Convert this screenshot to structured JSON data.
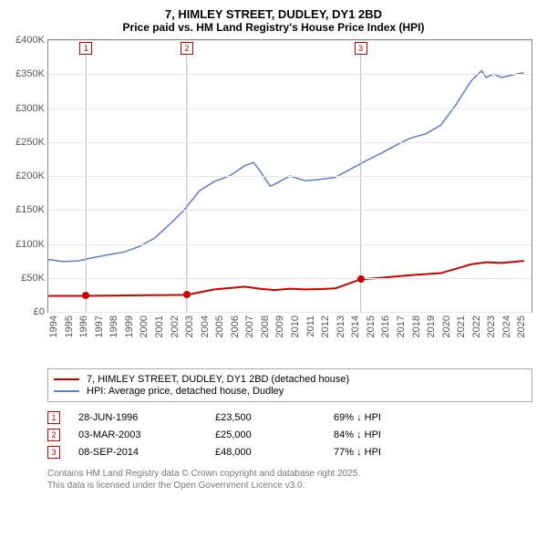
{
  "title": "7, HIMLEY STREET, DUDLEY, DY1 2BD",
  "subtitle": "Price paid vs. HM Land Registry's House Price Index (HPI)",
  "chart": {
    "type": "line",
    "background_color": "#ffffff",
    "grid_color": "#e8e8e8",
    "axis_color": "#888888",
    "x_range": [
      1994,
      2026
    ],
    "y_range": [
      0,
      400000
    ],
    "y_ticks": [
      0,
      50000,
      100000,
      150000,
      200000,
      250000,
      300000,
      350000,
      400000
    ],
    "y_tick_labels": [
      "£0",
      "£50K",
      "£100K",
      "£150K",
      "£200K",
      "£250K",
      "£300K",
      "£350K",
      "£400K"
    ],
    "x_ticks": [
      1994,
      1995,
      1996,
      1997,
      1998,
      1999,
      2000,
      2001,
      2002,
      2003,
      2004,
      2005,
      2006,
      2007,
      2008,
      2009,
      2010,
      2011,
      2012,
      2013,
      2014,
      2015,
      2016,
      2017,
      2018,
      2019,
      2020,
      2021,
      2022,
      2023,
      2024,
      2025
    ],
    "label_fontsize": 11,
    "title_fontsize": 13,
    "series": {
      "hpi": {
        "label": "HPI: Average price, detached house, Dudley",
        "color": "#5b7fc7",
        "line_width": 1.5,
        "data": [
          [
            1994,
            77000
          ],
          [
            1995,
            74000
          ],
          [
            1996,
            75000
          ],
          [
            1997,
            80000
          ],
          [
            1998,
            84000
          ],
          [
            1999,
            88000
          ],
          [
            2000,
            96000
          ],
          [
            2001,
            108000
          ],
          [
            2002,
            128000
          ],
          [
            2003,
            150000
          ],
          [
            2004,
            178000
          ],
          [
            2005,
            192000
          ],
          [
            2006,
            200000
          ],
          [
            2007,
            215000
          ],
          [
            2007.6,
            220000
          ],
          [
            2008,
            208000
          ],
          [
            2008.7,
            185000
          ],
          [
            2009,
            188000
          ],
          [
            2010,
            200000
          ],
          [
            2011,
            193000
          ],
          [
            2012,
            195000
          ],
          [
            2013,
            198000
          ],
          [
            2014,
            210000
          ],
          [
            2015,
            222000
          ],
          [
            2016,
            233000
          ],
          [
            2017,
            245000
          ],
          [
            2018,
            256000
          ],
          [
            2019,
            262000
          ],
          [
            2020,
            275000
          ],
          [
            2021,
            305000
          ],
          [
            2022,
            340000
          ],
          [
            2022.7,
            355000
          ],
          [
            2023,
            345000
          ],
          [
            2023.5,
            350000
          ],
          [
            2024,
            345000
          ],
          [
            2025,
            350000
          ],
          [
            2025.5,
            352000
          ]
        ]
      },
      "price_paid": {
        "label": "7, HIMLEY STREET, DUDLEY, DY1 2BD (detached house)",
        "color": "#cc0000",
        "line_width": 2,
        "data": [
          [
            1994,
            23500
          ],
          [
            1996.49,
            23500
          ],
          [
            1996.49,
            23500
          ],
          [
            2003.17,
            25000
          ],
          [
            2003.17,
            25000
          ],
          [
            2005,
            33000
          ],
          [
            2006,
            35000
          ],
          [
            2007,
            37000
          ],
          [
            2008,
            34000
          ],
          [
            2009,
            32000
          ],
          [
            2010,
            34000
          ],
          [
            2011,
            33000
          ],
          [
            2012,
            33500
          ],
          [
            2013,
            34500
          ],
          [
            2014.69,
            48000
          ],
          [
            2014.69,
            48000
          ],
          [
            2016,
            50000
          ],
          [
            2018,
            54000
          ],
          [
            2020,
            57000
          ],
          [
            2022,
            70000
          ],
          [
            2023,
            73000
          ],
          [
            2024,
            72000
          ],
          [
            2025,
            74000
          ],
          [
            2025.5,
            75000
          ]
        ]
      }
    },
    "markers": [
      {
        "num": "1",
        "x": 1996.49,
        "y_box": 400000,
        "color": "#cc0000"
      },
      {
        "num": "2",
        "x": 2003.17,
        "y_box": 400000,
        "color": "#cc0000"
      },
      {
        "num": "3",
        "x": 2014.69,
        "y_box": 400000,
        "color": "#cc0000"
      }
    ],
    "sale_points": [
      {
        "x": 1996.49,
        "y": 23500,
        "color": "#cc0000"
      },
      {
        "x": 2003.17,
        "y": 25000,
        "color": "#cc0000"
      },
      {
        "x": 2014.69,
        "y": 48000,
        "color": "#cc0000"
      }
    ]
  },
  "legend": [
    {
      "color": "#cc0000",
      "label": "7, HIMLEY STREET, DUDLEY, DY1 2BD (detached house)"
    },
    {
      "color": "#5b7fc7",
      "label": "HPI: Average price, detached house, Dudley"
    }
  ],
  "sales": [
    {
      "num": "1",
      "date": "28-JUN-1996",
      "price": "£23,500",
      "vs_hpi": "69% ↓ HPI",
      "color": "#cc0000"
    },
    {
      "num": "2",
      "date": "03-MAR-2003",
      "price": "£25,000",
      "vs_hpi": "84% ↓ HPI",
      "color": "#cc0000"
    },
    {
      "num": "3",
      "date": "08-SEP-2014",
      "price": "£48,000",
      "vs_hpi": "77% ↓ HPI",
      "color": "#cc0000"
    }
  ],
  "footnote_line1": "Contains HM Land Registry data © Crown copyright and database right 2025.",
  "footnote_line2": "This data is licensed under the Open Government Licence v3.0."
}
